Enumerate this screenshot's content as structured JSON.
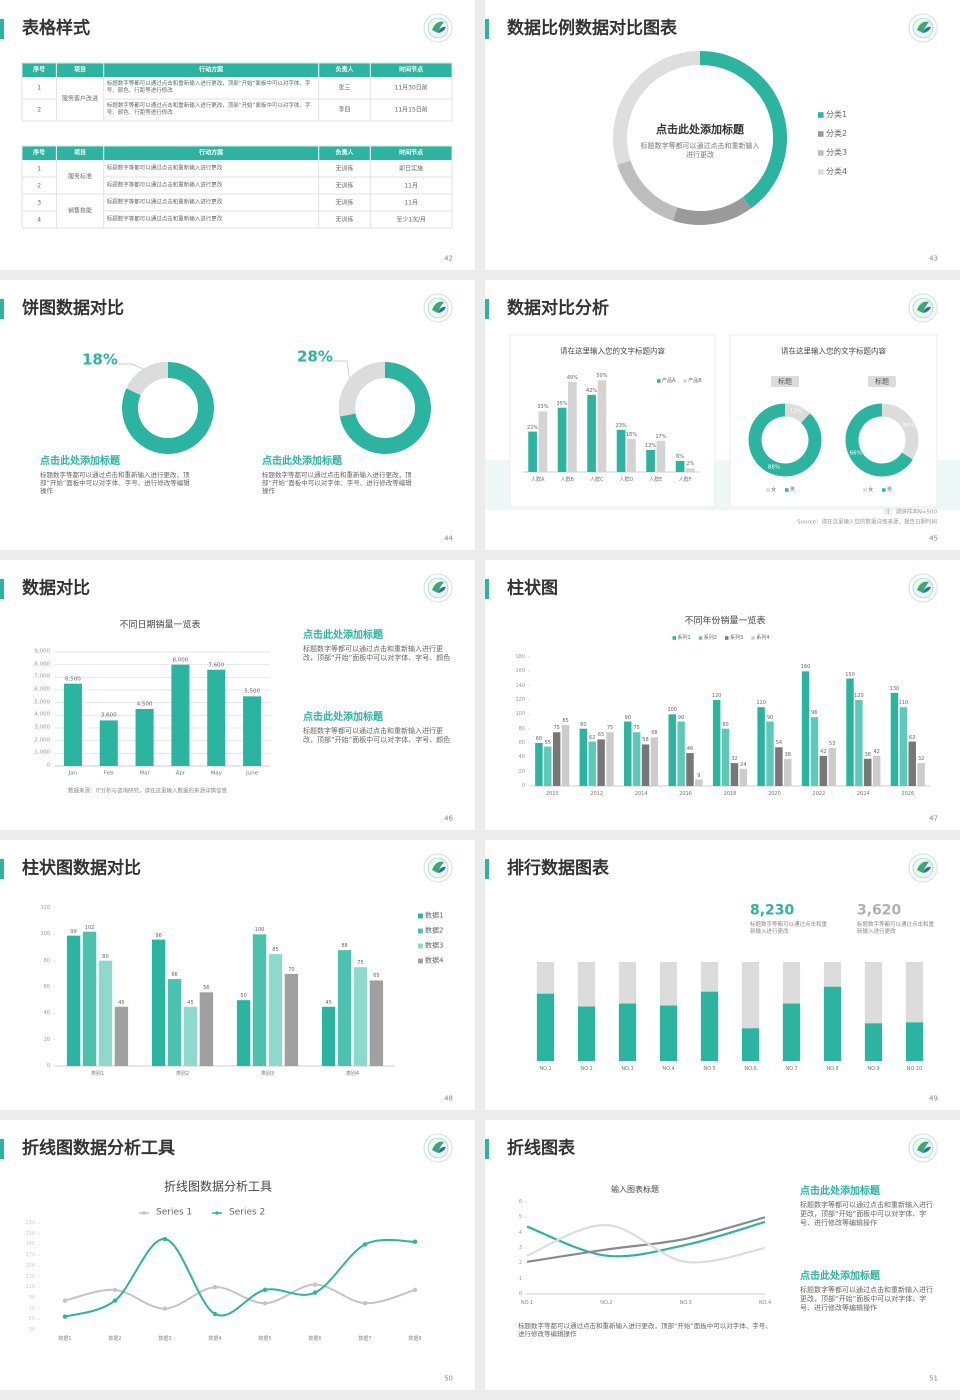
{
  "slides": [
    {
      "title": "表格样式",
      "page": "42",
      "tables": [
        {
          "header": [
            "序号",
            "项目",
            "行动方案",
            "负责人",
            "时间节点"
          ],
          "groups": [
            {
              "project": "服务客户改进",
              "rows": [
                [
                  "1",
                  "标题数字等都可以通过点击和重新输入进行更改，顶部“开始”面板中可以对字体、字号、颜色、行距等进行修改",
                  "张三",
                  "11月30日前"
                ],
                [
                  "2",
                  "标题数字等都可以通过点击和重新输入进行更改，顶部“开始”面板中可以对字体、字号、颜色、行距等进行修改",
                  "李四",
                  "11月15日前"
                ]
              ]
            }
          ]
        },
        {
          "header": [
            "序号",
            "项目",
            "行动方案",
            "负责人",
            "时间节点"
          ],
          "groups": [
            {
              "project": "服务标准",
              "rows": [
                [
                  "1",
                  "标题数字等都可以通过点击和重新输入进行更改",
                  "无训练",
                  "即日实施"
                ],
                [
                  "2",
                  "标题数字等都可以通过点击和重新输入进行更改",
                  "无训练",
                  "11月"
                ]
              ]
            },
            {
              "project": "销售技能",
              "rows": [
                [
                  "3",
                  "标题数字等都可以通过点击和重新输入进行更改",
                  "无训练",
                  "11月"
                ],
                [
                  "4",
                  "标题数字等都可以通过点击和重新输入进行更改",
                  "无训练",
                  "至少1次/月"
                ]
              ]
            }
          ]
        }
      ]
    },
    {
      "title": "数据比例数据对比图表",
      "page": "43",
      "chart_data": {
        "type": "donut",
        "title": "点击此处添加标题",
        "subtitle": "标题数字等都可以通过点击和重新输入进行更改",
        "categories": [
          "分类1",
          "分类2",
          "分类3",
          "分类4"
        ],
        "values": [
          40,
          15,
          15,
          30
        ],
        "colors": [
          "#2bb5a0",
          "#9a9a9a",
          "#bdbdbd",
          "#dedede"
        ]
      }
    },
    {
      "title": "饼图数据对比",
      "page": "44",
      "chart_data": [
        {
          "type": "ring",
          "values": [
            18
          ],
          "value_labels": [
            "18%"
          ],
          "color": "#dcdcdc",
          "track": "#2bb5a0",
          "title": "点击此处添加标题",
          "text": "标题数字等都可以通过点击和重新输入进行更改，顶部“开始”面板中可以对字体、字号、进行修改等编辑操作"
        },
        {
          "type": "ring",
          "values": [
            28
          ],
          "value_labels": [
            "28%"
          ],
          "color": "#dcdcdc",
          "track": "#2bb5a0",
          "title": "点击此处添加标题",
          "text": "标题数字等都可以通过点击和重新输入进行更改，顶部“开始”面板中可以对字体、字号、进行修改等编辑操作"
        }
      ]
    },
    {
      "title": "数据对比分析",
      "page": "45",
      "cards": [
        {
          "title": "请在这里输入您的文字标题内容",
          "chart_data": {
            "type": "bar",
            "categories": [
              "人群A",
              "人群B",
              "人群C",
              "人群D",
              "人群E",
              "人群F"
            ],
            "series": [
              {
                "name": "产品A",
                "color": "#2bb5a0",
                "values": [
                  22,
                  35,
                  42,
                  23,
                  12,
                  6
                ],
                "value_labels": [
                  "22%",
                  "35%",
                  "42%",
                  "23%",
                  "12%",
                  "6%"
                ]
              },
              {
                "name": "产品B",
                "color": "#d4d4d4",
                "values": [
                  33,
                  49,
                  50,
                  18,
                  17,
                  2
                ],
                "value_labels": [
                  "33%",
                  "49%",
                  "50%",
                  "18%",
                  "17%",
                  "2%"
                ]
              }
            ],
            "ylim": [
              0,
              55
            ]
          }
        },
        {
          "title": "请在这里输入您的文字标题内容",
          "chart_data": [
            {
              "type": "donut",
              "title": "标题",
              "categories": [
                "女",
                "男"
              ],
              "values": [
                12,
                88
              ],
              "value_labels": [
                "12%",
                "88%"
              ],
              "colors": [
                "#dcdcdc",
                "#2bb5a0"
              ]
            },
            {
              "type": "donut",
              "title": "标题",
              "categories": [
                "女",
                "男"
              ],
              "values": [
                34,
                66
              ],
              "value_labels": [
                "34%",
                "66%"
              ],
              "colors": [
                "#dcdcdc",
                "#2bb5a0"
              ]
            }
          ]
        }
      ],
      "notes": [
        "注：调研样本N=500",
        "Source：请在这里输入您的数据详细来源，报告日期时间"
      ]
    },
    {
      "title": "数据对比",
      "page": "46",
      "chart_data": {
        "type": "bar",
        "title": "不同日期销量一览表",
        "categories": [
          "Jan",
          "Feb",
          "Mar",
          "Apr",
          "May",
          "June"
        ],
        "values": [
          6500,
          3600,
          4500,
          8000,
          7600,
          5500
        ],
        "value_labels": [
          "6,500",
          "3,600",
          "4,500",
          "8,000",
          "7,600",
          "5,500"
        ],
        "color": "#2bb5a0",
        "ylim": [
          0,
          9000
        ],
        "yticks": [
          0,
          {
            "value": 1000,
            "label": "1,000"
          },
          {
            "value": 2000,
            "label": "2,000"
          },
          {
            "value": 3000,
            "label": "3,000"
          },
          {
            "value": 4000,
            "label": "4,000"
          },
          {
            "value": 5000,
            "label": "5,000"
          },
          {
            "value": 6000,
            "label": "6,000"
          },
          {
            "value": 7000,
            "label": "7,000"
          },
          {
            "value": 8000,
            "label": "8,000"
          },
          {
            "value": 9000,
            "label": "9,000"
          }
        ],
        "grid": true
      },
      "blocks": [
        {
          "heading": "点击此处添加标题",
          "text": "标题数字等都可以通过点击和重新输入进行更改，顶部“开始”面板中可以对字体、字号、颜色"
        },
        {
          "heading": "点击此处添加标题",
          "text": "标题数字等都可以通过点击和重新输入进行更改，顶部“开始”面板中可以对字体、字号、颜色"
        }
      ],
      "source": "数据来源：IT分析与咨询研究，请在这里输入数据的来源详情信息"
    },
    {
      "title": "柱状图",
      "page": "47",
      "chart_data": {
        "type": "bar",
        "title": "不同年份销量一览表",
        "categories": [
          "2010",
          "2012",
          "2014",
          "2016",
          "2018",
          "2020",
          "2022",
          "2024",
          "2026"
        ],
        "series": [
          {
            "name": "系列1",
            "color": "#2bb5a0",
            "values": [
              60,
              80,
              90,
              100,
              120,
              110,
              160,
              150,
              130
            ]
          },
          {
            "name": "系列2",
            "color": "#5ccab8",
            "values": [
              55,
              62,
              75,
              90,
              80,
              90,
              96,
              120,
              110
            ]
          },
          {
            "name": "系列3",
            "color": "#777777",
            "values": [
              75,
              65,
              58,
              46,
              32,
              54,
              42,
              38,
              62
            ]
          },
          {
            "name": "系列4",
            "color": "#cccccc",
            "values": [
              85,
              75,
              68,
              9,
              24,
              38,
              53,
              42,
              32
            ]
          }
        ],
        "ylim": [
          0,
          180
        ],
        "yticks": [
          0,
          20,
          40,
          60,
          80,
          100,
          120,
          140,
          160,
          180
        ]
      }
    },
    {
      "title": "柱状图数据对比",
      "page": "48",
      "chart_data": {
        "type": "bar",
        "categories": [
          "类别1",
          "类别2",
          "类别3",
          "类别4"
        ],
        "series": [
          {
            "name": "数据1",
            "color": "#2bb5a0",
            "values": [
              99,
              96,
              50,
              45
            ]
          },
          {
            "name": "数据2",
            "color": "#4cc2ae",
            "values": [
              102,
              66,
              100,
              88
            ]
          },
          {
            "name": "数据3",
            "color": "#8dd9cc",
            "values": [
              80,
              45,
              85,
              75
            ]
          },
          {
            "name": "数据4",
            "color": "#a0a0a0",
            "values": [
              45,
              56,
              70,
              65
            ]
          }
        ],
        "ylim": [
          0,
          120
        ],
        "yticks": [
          0,
          20,
          40,
          60,
          80,
          100,
          120
        ]
      }
    },
    {
      "title": "排行数据图表",
      "page": "49",
      "stats": [
        {
          "value": "8,230",
          "text": "标题数字等都可以通过点击和重新输入进行更改",
          "color": "#2bb5a0"
        },
        {
          "value": "3,620",
          "text": "标题数字等都可以通过点击和重新输入进行更改",
          "color": "#b0b0b0"
        }
      ],
      "chart_data": {
        "type": "progress",
        "categories": [
          "NO.1",
          "NO.2",
          "NO.3",
          "NO.4",
          "NO.5",
          "NO.6",
          "NO.7",
          "NO.8",
          "NO.9",
          "NO.10"
        ],
        "values": [
          68,
          55,
          58,
          56,
          70,
          33,
          58,
          75,
          38,
          39
        ],
        "ylim": [
          0,
          100
        ],
        "color": "#2bb5a0",
        "track": "#dcdcdc"
      }
    },
    {
      "title": "折线图数据分析工具",
      "page": "50",
      "chart_data": {
        "type": "line",
        "title": "折线图数据分析工具",
        "categories": [
          "数据1",
          "数据2",
          "数据3",
          "数据4",
          "数据5",
          "数据6",
          "数据7",
          "数据8"
        ],
        "series": [
          {
            "name": "Series 1",
            "color": "#c4c4c4",
            "values": [
              85,
              105,
              70,
              110,
              80,
              115,
              80,
              105
            ]
          },
          {
            "name": "Series 2",
            "color": "#2bb5a0",
            "values": [
              55,
              85,
              200,
              60,
              105,
              100,
              190,
              195
            ]
          }
        ],
        "ylim": [
          30,
          230
        ],
        "yticks": [
          30,
          50,
          70,
          90,
          110,
          130,
          150,
          170,
          190,
          210,
          230
        ],
        "markers": true
      }
    },
    {
      "title": "折线图表",
      "page": "51",
      "chart_data": {
        "type": "line",
        "title": "输入图表标题",
        "categories": [
          "NO.1",
          "NO.2",
          "NO.3",
          "NO.4"
        ],
        "series": [
          {
            "color": "#2bb5a0",
            "values": [
              4.4,
              2.5,
              3.2,
              4.7
            ]
          },
          {
            "color": "#8a8a8a",
            "values": [
              2.1,
              2.9,
              3.6,
              5
            ]
          },
          {
            "color": "#dcdcdc",
            "values": [
              2.5,
              4.5,
              2.1,
              3
            ]
          }
        ],
        "ylim": [
          0,
          6
        ],
        "yticks": [
          0,
          1,
          2,
          3,
          4,
          5,
          6
        ]
      },
      "blocks": [
        {
          "heading": "点击此处添加标题",
          "text": "标题数字等都可以通过点击和重新输入进行更改，顶部“开始”面板中可以对字体、字号、进行修改等编辑操作"
        },
        {
          "heading": "点击此处添加标题",
          "text": "标题数字等都可以通过点击和重新输入进行更改，顶部“开始”面板中可以对字体、字号、进行修改等编辑操作"
        }
      ],
      "caption": "标题数字等都可以通过点击和重新输入进行更改，顶部“开始”面板中可以对字体、字号、进行修改等编辑操作"
    }
  ]
}
